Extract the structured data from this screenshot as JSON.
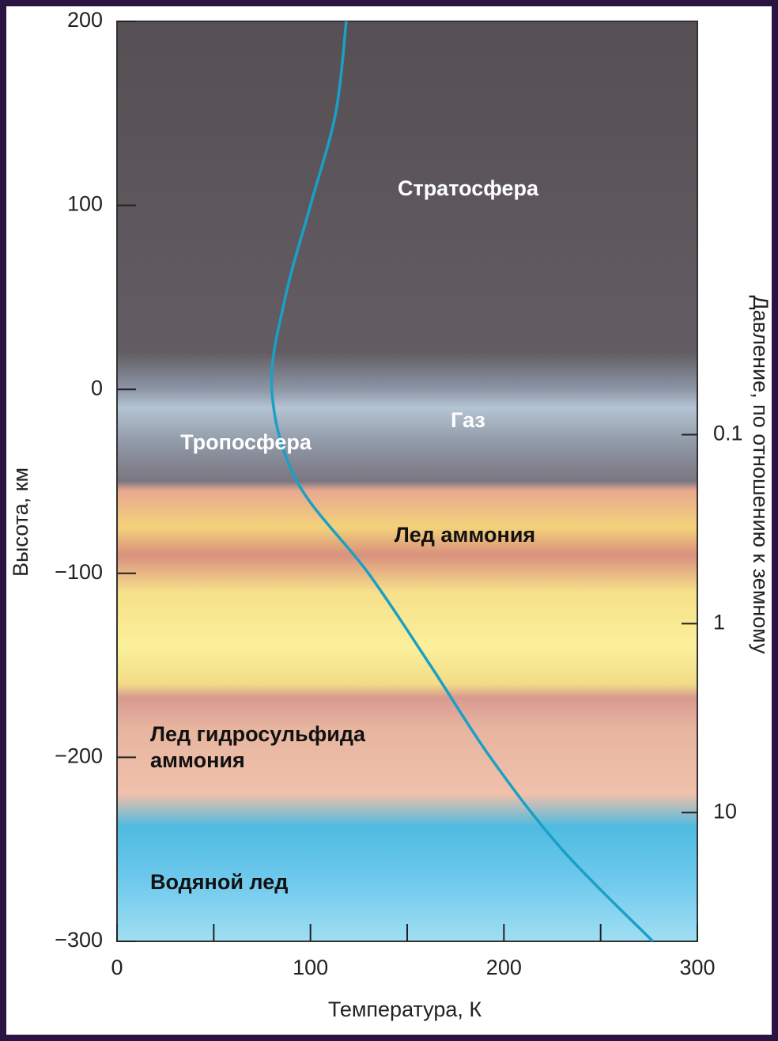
{
  "chart_data": {
    "type": "line",
    "x_label": "Температура, К",
    "y_label": "Высота, км",
    "y2_label": "Давление, по отношению к земному",
    "xlim": [
      0,
      300
    ],
    "xticks": [
      0,
      100,
      200,
      300
    ],
    "xminorticks": [
      50,
      150,
      250
    ],
    "ylim": [
      -300,
      200
    ],
    "yticks": [
      200,
      100,
      0,
      {
        "value": -100,
        "label": "−100"
      },
      {
        "value": -200,
        "label": "−200"
      },
      {
        "value": -300,
        "label": "−300"
      }
    ],
    "y2lim": [
      48,
      0.00065
    ],
    "y2scale": "log",
    "y2ticks": [
      0.1,
      1,
      10
    ],
    "series": [
      {
        "color": "#1aa0c6",
        "x": [
          118.5,
          113,
          100,
          87,
          80,
          93,
          130,
          162,
          193,
          230,
          277
        ],
        "values": [
          200,
          150,
          100,
          50,
          0,
          -50,
          -100,
          -150,
          -200,
          -250,
          -300
        ]
      }
    ],
    "annotations": [
      "Стратосфера",
      "Газ",
      "Тропосфера",
      "Лед аммония",
      "Лед гидросульфида",
      "аммония",
      "Водяной лед"
    ]
  }
}
